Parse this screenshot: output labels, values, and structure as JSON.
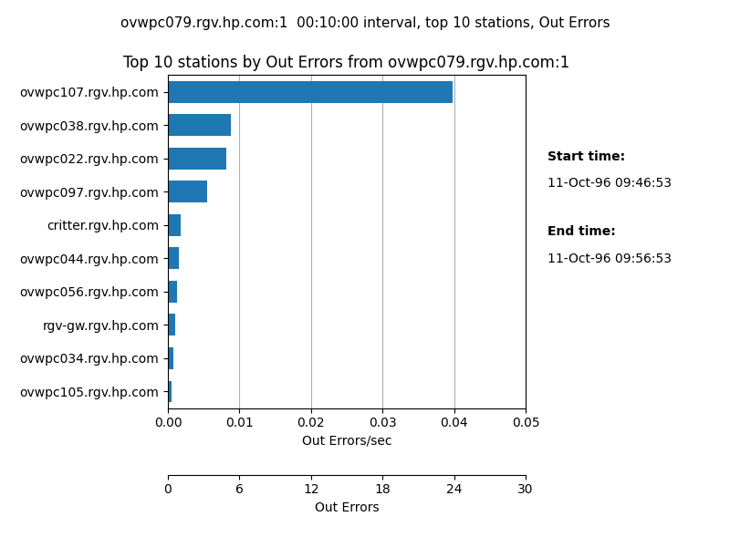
{
  "chart_data": {
    "type": "bar",
    "orientation": "horizontal",
    "title": "Top 10 stations by Out Errors from ovwpc079.rgv.hp.com:1",
    "subtitle": "ovwpc079.rgv.hp.com:1  00:10:00 interval, top 10 stations, Out Errors",
    "categories": [
      "ovwpc107.rgv.hp.com",
      "ovwpc038.rgv.hp.com",
      "ovwpc022.rgv.hp.com",
      "ovwpc097.rgv.hp.com",
      "critter.rgv.hp.com",
      "ovwpc044.rgv.hp.com",
      "ovwpc056.rgv.hp.com",
      "rgv-gw.rgv.hp.com",
      "ovwpc034.rgv.hp.com",
      "ovwpc105.rgv.hp.com"
    ],
    "values": [
      0.0398,
      0.0088,
      0.0082,
      0.0055,
      0.0018,
      0.0015,
      0.0013,
      0.001,
      0.0008,
      0.0005
    ],
    "xlabel": "Out Errors/sec",
    "xlim": [
      0.0,
      0.05
    ],
    "xticks": [
      {
        "value": 0.0,
        "label": "0.00"
      },
      0.01,
      0.02,
      0.03,
      0.04,
      0.05
    ],
    "x2label": "Out Errors",
    "x2ticks": [
      {
        "value": 0.0,
        "label": "0"
      },
      {
        "value": 0.01,
        "label": "6"
      },
      {
        "value": 0.02,
        "label": "12"
      },
      {
        "value": 0.03,
        "label": "18"
      },
      {
        "value": 0.04,
        "label": "24"
      },
      {
        "value": 0.05,
        "label": "30"
      }
    ],
    "annotations": [
      "Start time:",
      "11-Oct-96 09:46:53",
      "End time:",
      "11-Oct-96 09:56:53"
    ],
    "grid": true
  }
}
